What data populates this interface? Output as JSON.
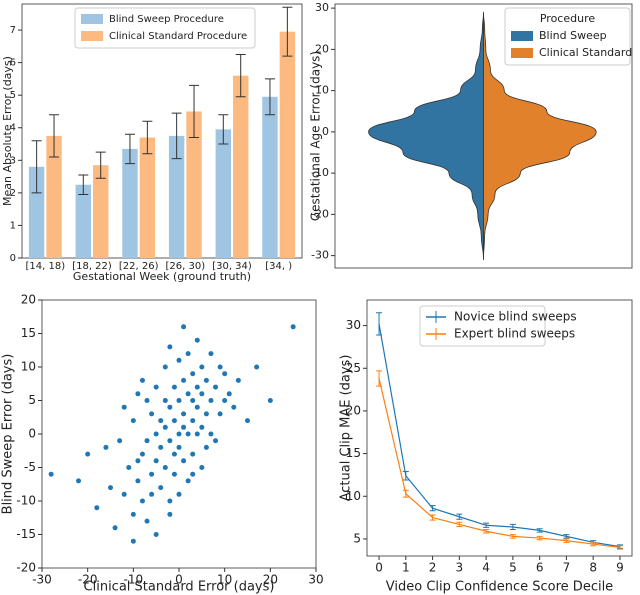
{
  "chart_data": [
    {
      "type": "bar",
      "ylabel": "Mean Absolute Error (days)",
      "xlabel": "Gestational Week (ground truth)",
      "categories": [
        "[14, 18)",
        "[18, 22)",
        "[22, 26)",
        "[26, 30)",
        "[30, 34)",
        "[34, )"
      ],
      "series": [
        {
          "name": "Blind Sweep Procedure",
          "color": "#9fc5e3",
          "values": [
            2.8,
            2.25,
            3.35,
            3.75,
            3.95,
            4.95
          ],
          "errors": [
            0.8,
            0.3,
            0.45,
            0.7,
            0.45,
            0.55
          ]
        },
        {
          "name": "Clinical Standard Procedure",
          "color": "#fdba80",
          "values": [
            3.75,
            2.85,
            3.7,
            4.5,
            5.6,
            6.95
          ],
          "errors": [
            0.65,
            0.4,
            0.5,
            0.8,
            0.65,
            0.75
          ]
        }
      ],
      "ylim": [
        0,
        7.8
      ],
      "yticks": [
        0,
        1,
        2,
        3,
        4,
        5,
        6,
        7
      ],
      "legend": "upper left"
    },
    {
      "type": "violin",
      "ylabel": "Gestational Age Error (days)",
      "legend_title": "Procedure",
      "y": [
        -31,
        -25,
        -20,
        -15,
        -10,
        -5,
        0,
        5,
        10,
        15,
        20,
        25,
        29
      ],
      "series": [
        {
          "name": "Blind Sweep",
          "color": "#3274a1",
          "density": [
            0,
            0.02,
            0.05,
            0.1,
            0.3,
            0.7,
            1,
            0.6,
            0.2,
            0.07,
            0.03,
            0.01,
            0
          ]
        },
        {
          "name": "Clinical Standard",
          "color": "#e1812c",
          "density": [
            0,
            0.01,
            0.04,
            0.1,
            0.32,
            0.75,
            0.98,
            0.55,
            0.18,
            0.06,
            0.02,
            0.01,
            0
          ]
        }
      ],
      "ylim": [
        -33,
        31
      ],
      "yticks": [
        -30,
        -20,
        -10,
        0,
        10,
        20,
        30
      ],
      "legend": "upper right"
    },
    {
      "type": "scatter",
      "xlabel": "Clinical Standard Error (days)",
      "ylabel": "Blind Sweep Error (days)",
      "color": "#1f77b4",
      "x": [
        -28,
        -22,
        -20,
        -18,
        -16,
        -15,
        -14,
        -13,
        -12,
        -12,
        -11,
        -10,
        -10,
        -10,
        -9,
        -9,
        -8,
        -8,
        -8,
        -7,
        -7,
        -7,
        -6,
        -6,
        -6,
        -5,
        -5,
        -5,
        -5,
        -4,
        -4,
        -4,
        -3,
        -3,
        -3,
        -3,
        -2,
        -2,
        -2,
        -2,
        -1,
        -1,
        -1,
        -1,
        0,
        0,
        0,
        0,
        0,
        1,
        1,
        1,
        1,
        1,
        2,
        2,
        2,
        2,
        3,
        3,
        3,
        3,
        4,
        4,
        4,
        4,
        5,
        5,
        5,
        5,
        6,
        6,
        6,
        7,
        7,
        7,
        8,
        8,
        9,
        9,
        10,
        10,
        11,
        12,
        13,
        15,
        17,
        20,
        25,
        -9,
        -2,
        3
      ],
      "values": [
        -6,
        -7,
        -3,
        -11,
        -2,
        -8,
        -14,
        -1,
        -9,
        4,
        -5,
        -12,
        2,
        -16,
        -7,
        6,
        -3,
        8,
        -10,
        -1,
        -13,
        5,
        -6,
        3,
        -9,
        0,
        -4,
        7,
        -15,
        -2,
        2,
        -8,
        1,
        -5,
        5,
        10,
        -1,
        -10,
        4,
        13,
        2,
        -6,
        7,
        -3,
        0,
        -2,
        5,
        11,
        -9,
        3,
        -4,
        8,
        1,
        16,
        0,
        6,
        -7,
        12,
        2,
        9,
        -3,
        5,
        4,
        7,
        0,
        14,
        1,
        6,
        -5,
        10,
        3,
        8,
        -2,
        5,
        12,
        0,
        7,
        -1,
        3,
        10,
        5,
        9,
        6,
        4,
        8,
        2,
        10,
        5,
        16,
        -4,
        -12,
        -6
      ],
      "xlim": [
        -30,
        30
      ],
      "xticks": [
        -30,
        -20,
        -10,
        0,
        10,
        20,
        30
      ],
      "ylim": [
        -20,
        20
      ],
      "yticks": [
        -20,
        -15,
        -10,
        -5,
        0,
        5,
        10,
        15,
        20
      ]
    },
    {
      "type": "line",
      "xlabel": "Video Clip Confidence Score Decile",
      "ylabel": "Actual Clip MAE (days)",
      "x": [
        0,
        1,
        2,
        3,
        4,
        5,
        6,
        7,
        8,
        9
      ],
      "series": [
        {
          "name": "Novice blind sweeps",
          "color": "#1f77b4",
          "values": [
            30.2,
            12.4,
            8.6,
            7.6,
            6.6,
            6.4,
            6.0,
            5.3,
            4.6,
            4.1
          ],
          "errors": [
            1.3,
            0.5,
            0.3,
            0.3,
            0.25,
            0.3,
            0.2,
            0.2,
            0.2,
            0.2
          ]
        },
        {
          "name": "Expert blind sweeps",
          "color": "#ff7f0e",
          "values": [
            23.8,
            10.3,
            7.5,
            6.7,
            5.9,
            5.3,
            5.1,
            4.8,
            4.4,
            4.0
          ],
          "errors": [
            0.9,
            0.4,
            0.3,
            0.25,
            0.2,
            0.2,
            0.2,
            0.2,
            0.2,
            0.2
          ]
        }
      ],
      "xlim": [
        -0.45,
        9.45
      ],
      "xticks": [
        0,
        1,
        2,
        3,
        4,
        5,
        6,
        7,
        8,
        9
      ],
      "ylim": [
        3,
        33
      ],
      "yticks": [
        5,
        10,
        15,
        20,
        25,
        30
      ],
      "legend": "upper right"
    }
  ]
}
